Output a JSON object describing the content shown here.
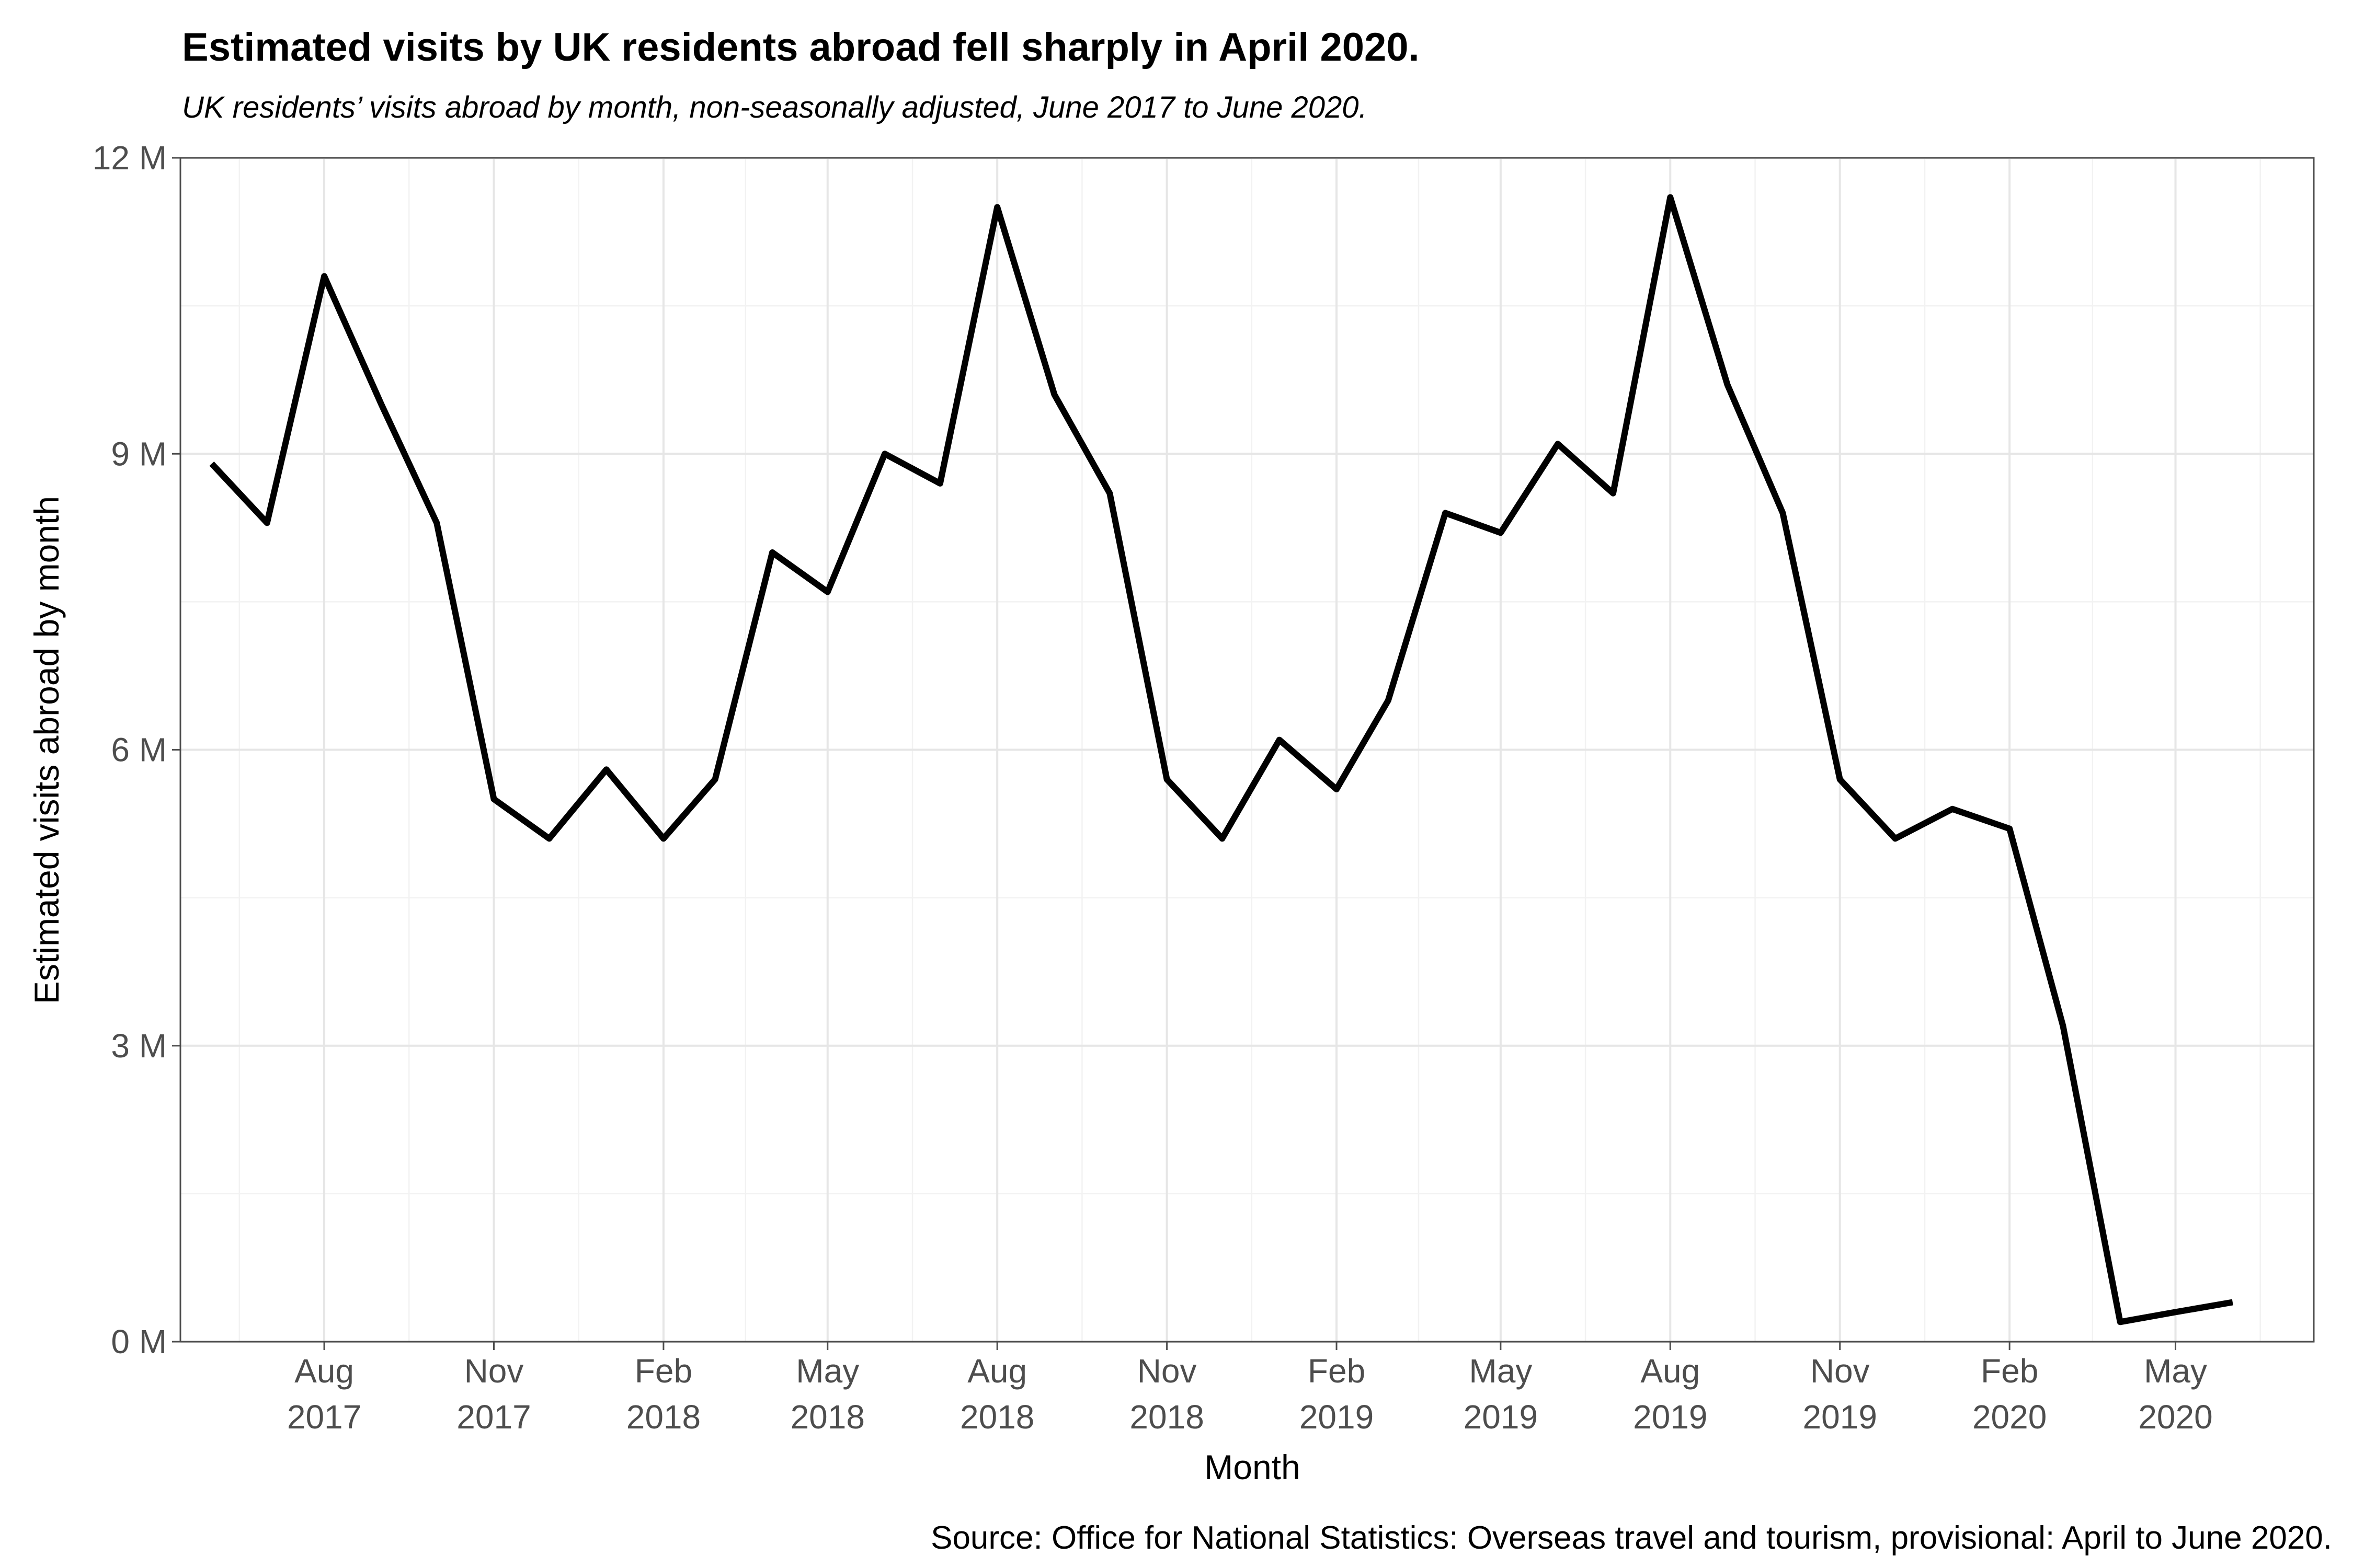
{
  "chart_data": {
    "type": "line",
    "title": "Estimated visits by UK residents abroad fell sharply in April 2020.",
    "subtitle": "UK residents’ visits abroad by month, non-seasonally adjusted, June 2017 to June 2020.",
    "xlabel": "Month",
    "ylabel": "Estimated visits abroad by month",
    "caption": "Source: Office for National Statistics: Overseas travel and tourism, provisional: April to June 2020.",
    "ylim": [
      0,
      12
    ],
    "xlim": [
      "2017-05-15",
      "2020-07-15"
    ],
    "grid": true,
    "legend": "none",
    "line_color": "#000000",
    "y_ticks": [
      {
        "value": 0,
        "label": "0 M"
      },
      {
        "value": 3,
        "label": "3 M"
      },
      {
        "value": 6,
        "label": "6 M"
      },
      {
        "value": 9,
        "label": "9 M"
      },
      {
        "value": 12,
        "label": "12 M"
      }
    ],
    "y_minor_ticks": [
      1.5,
      4.5,
      7.5,
      10.5
    ],
    "x_ticks": [
      {
        "date": "2017-08",
        "month": "Aug",
        "year": "2017"
      },
      {
        "date": "2017-11",
        "month": "Nov",
        "year": "2017"
      },
      {
        "date": "2018-02",
        "month": "Feb",
        "year": "2018"
      },
      {
        "date": "2018-05",
        "month": "May",
        "year": "2018"
      },
      {
        "date": "2018-08",
        "month": "Aug",
        "year": "2018"
      },
      {
        "date": "2018-11",
        "month": "Nov",
        "year": "2018"
      },
      {
        "date": "2019-02",
        "month": "Feb",
        "year": "2019"
      },
      {
        "date": "2019-05",
        "month": "May",
        "year": "2019"
      },
      {
        "date": "2019-08",
        "month": "Aug",
        "year": "2019"
      },
      {
        "date": "2019-11",
        "month": "Nov",
        "year": "2019"
      },
      {
        "date": "2020-02",
        "month": "Feb",
        "year": "2020"
      },
      {
        "date": "2020-05",
        "month": "May",
        "year": "2020"
      }
    ],
    "series": [
      {
        "x": [
          "2017-06",
          "2017-07",
          "2017-08",
          "2017-09",
          "2017-10",
          "2017-11",
          "2017-12",
          "2018-01",
          "2018-02",
          "2018-03",
          "2018-04",
          "2018-05",
          "2018-06",
          "2018-07",
          "2018-08",
          "2018-09",
          "2018-10",
          "2018-11",
          "2018-12",
          "2019-01",
          "2019-02",
          "2019-03",
          "2019-04",
          "2019-05",
          "2019-06",
          "2019-07",
          "2019-08",
          "2019-09",
          "2019-10",
          "2019-11",
          "2019-12",
          "2020-01",
          "2020-02",
          "2020-03",
          "2020-04",
          "2020-05",
          "2020-06"
        ],
        "values": [
          8.9,
          8.3,
          10.8,
          9.5,
          8.3,
          5.5,
          5.1,
          5.8,
          5.1,
          5.7,
          8.0,
          7.6,
          9.0,
          8.7,
          11.5,
          9.6,
          8.6,
          5.7,
          5.1,
          6.1,
          5.6,
          6.5,
          8.4,
          8.2,
          9.1,
          8.6,
          11.6,
          9.7,
          8.4,
          5.7,
          5.1,
          5.4,
          5.2,
          3.2,
          0.2,
          0.3,
          0.4
        ]
      }
    ]
  }
}
